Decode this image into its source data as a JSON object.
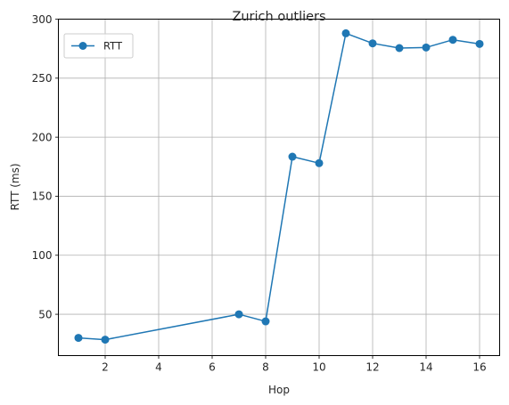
{
  "chart_data": {
    "type": "line",
    "title": "Zurich outliers",
    "xlabel": "Hop",
    "ylabel": "RTT (ms)",
    "xlim": [
      0.25,
      16.75
    ],
    "ylim": [
      15,
      300
    ],
    "xticks": [
      2,
      4,
      6,
      8,
      10,
      12,
      14,
      16
    ],
    "yticks": [
      50,
      100,
      150,
      200,
      250,
      300
    ],
    "grid": true,
    "legend_position": "top-left",
    "series": [
      {
        "name": "RTT",
        "color": "#1f77b4",
        "marker": "circle",
        "x": [
          1,
          2,
          7,
          8,
          9,
          10,
          11,
          12,
          13,
          14,
          15,
          16
        ],
        "y": [
          30,
          28.5,
          50,
          44,
          183.5,
          178,
          288,
          279.5,
          275.5,
          276,
          282.5,
          279
        ]
      }
    ]
  }
}
